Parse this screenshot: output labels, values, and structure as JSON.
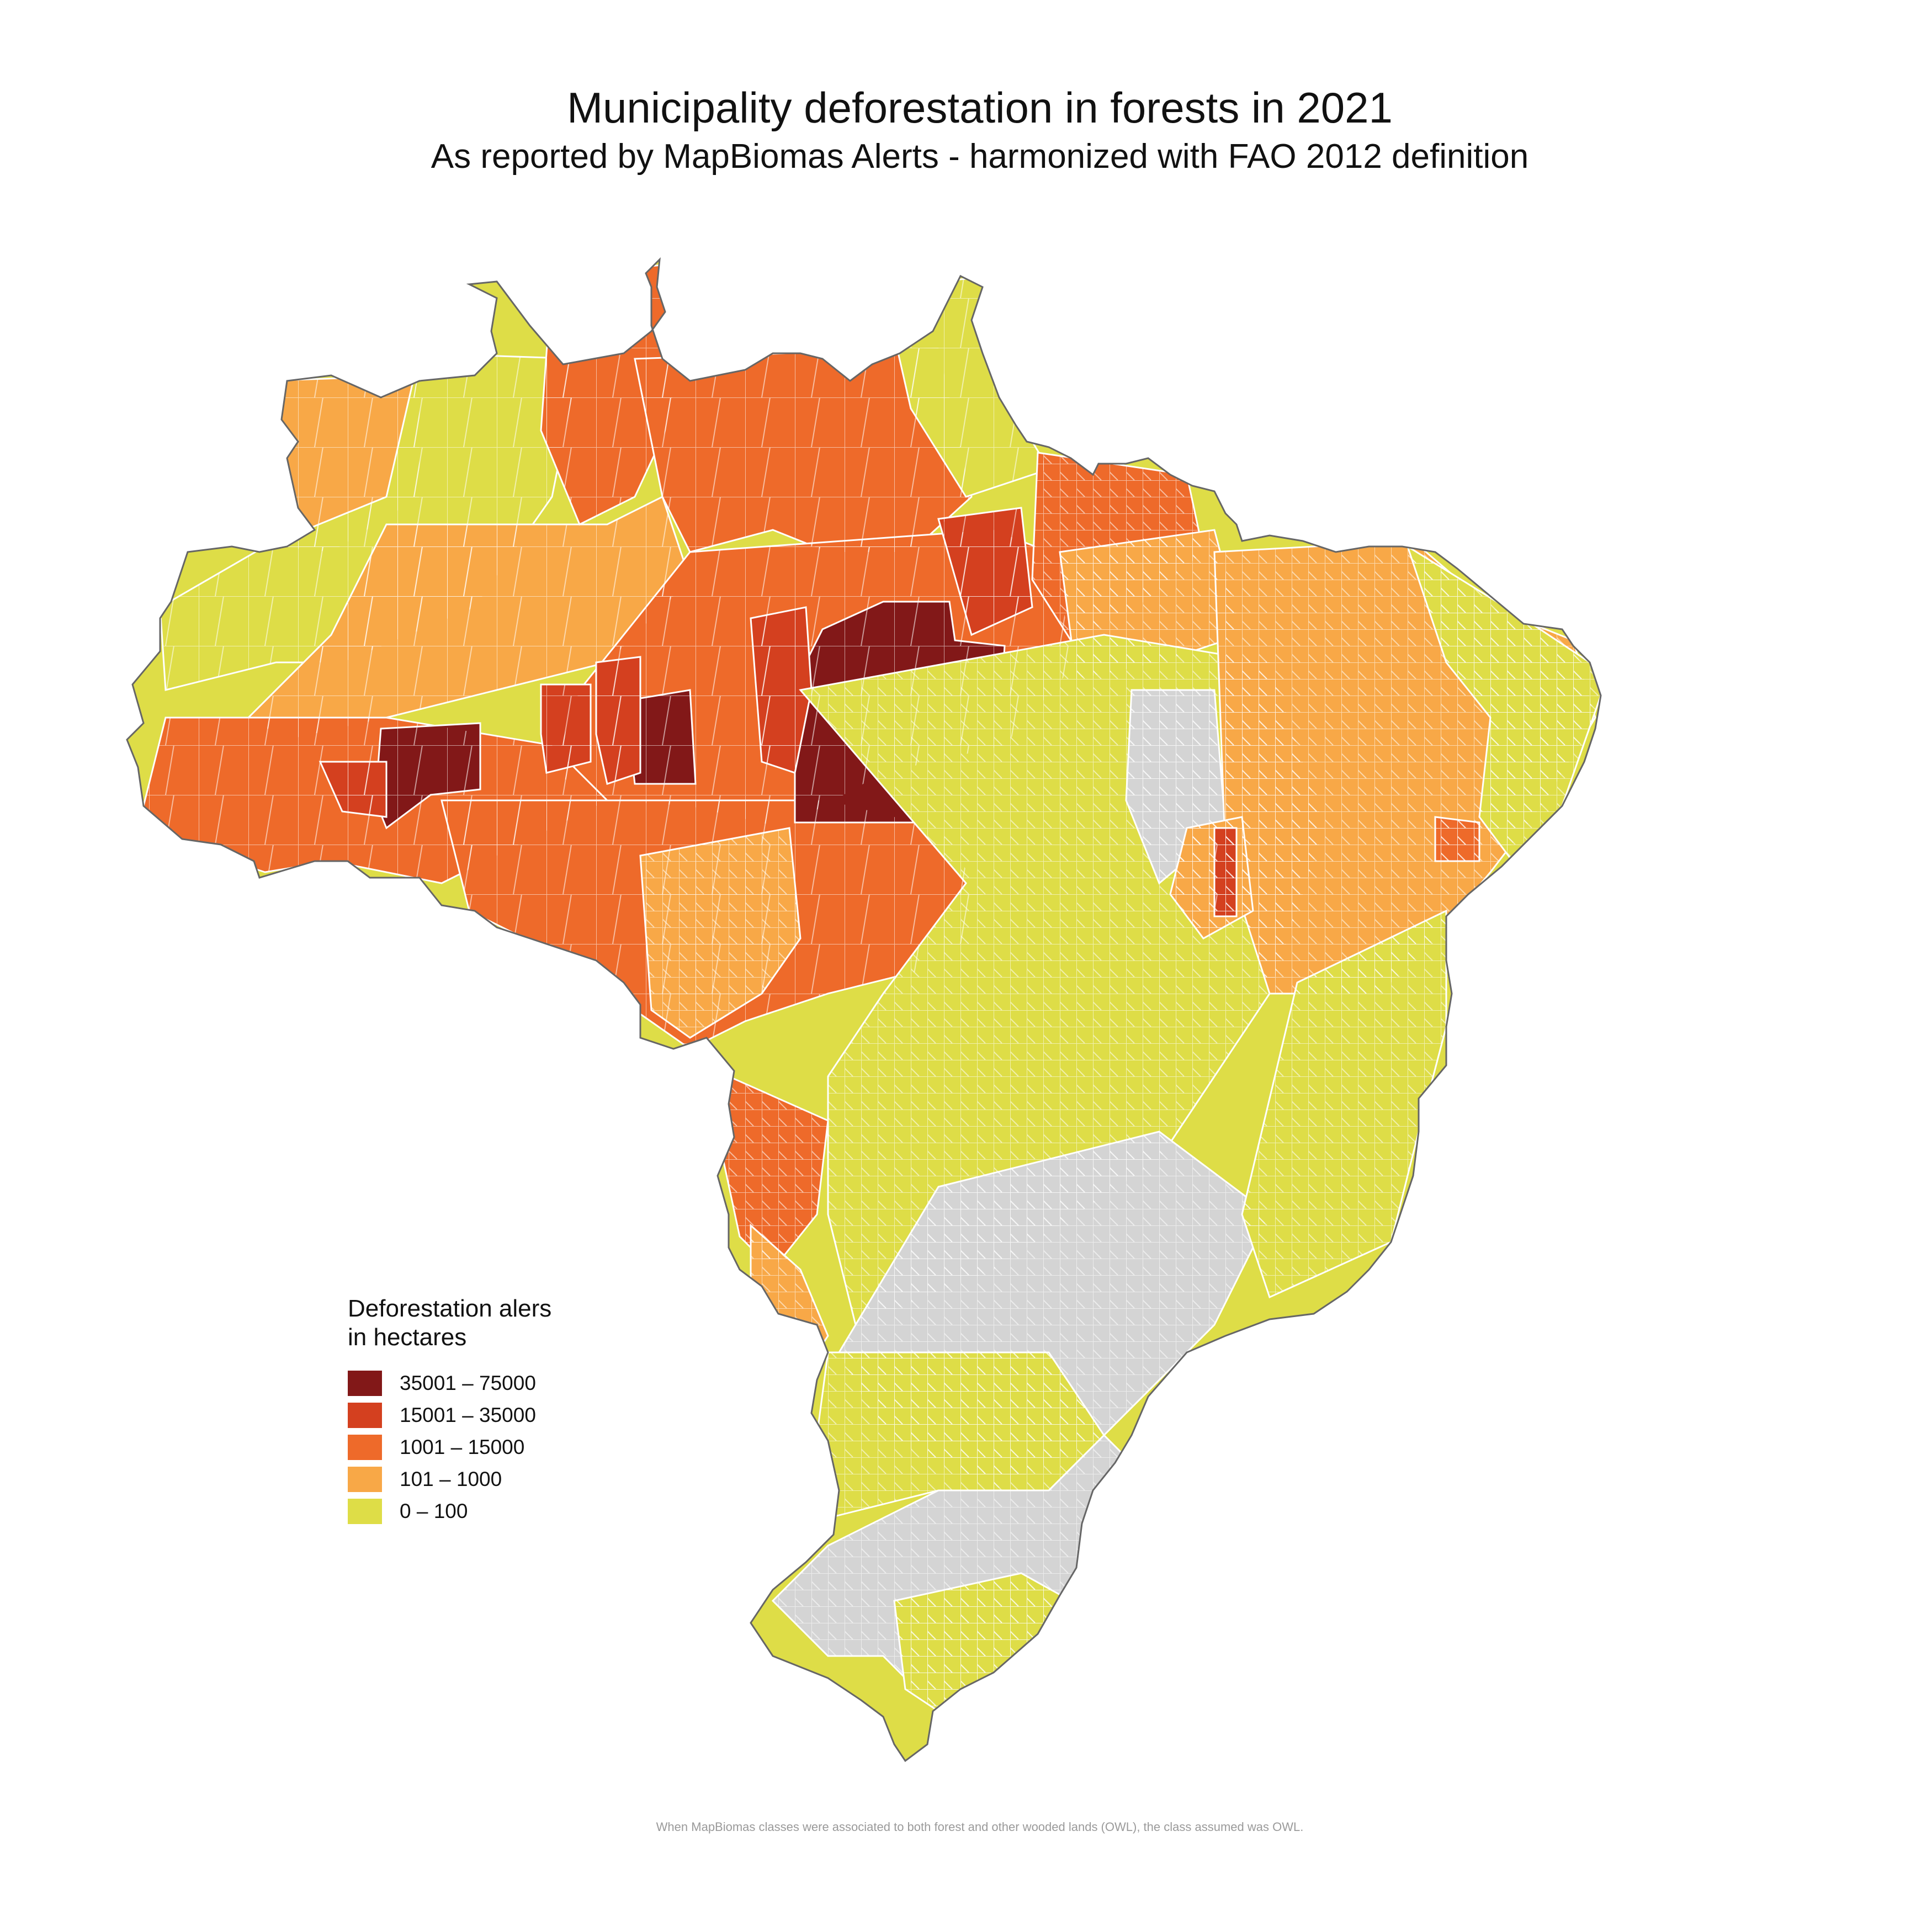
{
  "title": "Municipality deforestation in forests in 2021",
  "subtitle": "As reported by MapBiomas Alerts - harmonized with FAO 2012 definition",
  "legend": {
    "title_line1": "Deforestation alers",
    "title_line2": "in hectares",
    "classes": [
      {
        "label": "35001 – 75000",
        "color": "#821818"
      },
      {
        "label": "15001 – 35000",
        "color": "#d4401f"
      },
      {
        "label": "1001 – 15000",
        "color": "#ee6a2a"
      },
      {
        "label": "101 – 1000",
        "color": "#f8a847"
      },
      {
        "label": "0 – 100",
        "color": "#dedd47"
      }
    ]
  },
  "no_data_color": "#d4d4d4",
  "footnote": "When MapBiomas classes were associated to both forest and other wooded lands (OWL), the class assumed was OWL."
}
